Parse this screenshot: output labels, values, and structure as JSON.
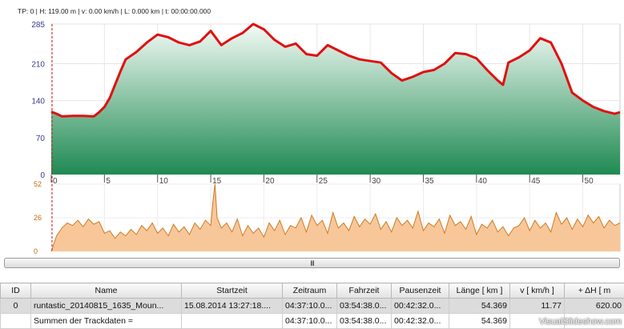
{
  "status_line": "TP: 0 | H: 119.00 m | v: 0.00 km/h | L: 0.000 km | t: 00:00:00.000",
  "colors": {
    "elevation_line": "#e01010",
    "elevation_fill_top": "#f4fbf6",
    "elevation_fill_bottom": "#1f8a52",
    "speed_line": "#cf7a22",
    "speed_fill": "#f7c79a",
    "cursor": "#d02020"
  },
  "chart_data": [
    {
      "type": "area",
      "title": "",
      "xlabel": "",
      "ylabel": "",
      "xlim": [
        0,
        53.5
      ],
      "ylim": [
        0,
        285
      ],
      "yticks": [
        0,
        70,
        140,
        210,
        285
      ],
      "xticks": [
        0,
        5,
        10,
        15,
        20,
        25,
        30,
        35,
        40,
        45,
        50
      ],
      "grid": true,
      "x": [
        0,
        0.5,
        1,
        2,
        3,
        4,
        4.5,
        5,
        5.5,
        6,
        6.5,
        7,
        8,
        9,
        10,
        11,
        12,
        13,
        14,
        15,
        16,
        17,
        18,
        19,
        20,
        21,
        22,
        23,
        24,
        25,
        26,
        27,
        28,
        29,
        30,
        31,
        32,
        33,
        34,
        35,
        36,
        37,
        38,
        39,
        40,
        41,
        42,
        42.5,
        43,
        44,
        45,
        46,
        47,
        48,
        49,
        50,
        51,
        52,
        53,
        53.5
      ],
      "values": [
        119,
        115,
        110,
        111,
        111,
        110,
        118,
        128,
        145,
        170,
        195,
        218,
        232,
        250,
        265,
        260,
        250,
        245,
        252,
        272,
        245,
        258,
        268,
        285,
        275,
        255,
        242,
        248,
        228,
        225,
        245,
        235,
        225,
        218,
        215,
        212,
        192,
        178,
        185,
        194,
        198,
        210,
        230,
        228,
        220,
        198,
        178,
        170,
        212,
        222,
        235,
        258,
        250,
        210,
        155,
        140,
        128,
        120,
        115,
        118
      ]
    },
    {
      "type": "area",
      "title": "",
      "ylim": [
        0,
        52
      ],
      "yticks": [
        0,
        26,
        52
      ],
      "xlim": [
        0,
        53.5
      ],
      "x": [
        0,
        0.5,
        1,
        1.5,
        2,
        2.5,
        3,
        3.5,
        4,
        4.5,
        5,
        5.5,
        6,
        6.5,
        7,
        7.5,
        8,
        8.5,
        9,
        9.5,
        10,
        10.5,
        11,
        11.5,
        12,
        12.5,
        13,
        13.5,
        14,
        14.5,
        15,
        15.2,
        15.4,
        15.6,
        16,
        16.5,
        17,
        17.5,
        18,
        18.5,
        19,
        19.5,
        20,
        20.5,
        21,
        21.5,
        22,
        22.5,
        23,
        23.5,
        24,
        24.5,
        25,
        25.5,
        26,
        26.5,
        27,
        27.5,
        28,
        28.5,
        29,
        29.5,
        30,
        30.5,
        31,
        31.5,
        32,
        32.5,
        33,
        33.5,
        34,
        34.5,
        35,
        35.5,
        36,
        36.5,
        37,
        37.5,
        38,
        38.5,
        39,
        39.5,
        40,
        40.5,
        41,
        41.5,
        42,
        42.5,
        43,
        43.5,
        44,
        44.5,
        45,
        45.5,
        46,
        46.5,
        47,
        47.5,
        48,
        48.5,
        49,
        49.5,
        50,
        50.5,
        51,
        51.5,
        52,
        52.5,
        53,
        53.5
      ],
      "values": [
        0,
        12,
        18,
        22,
        20,
        24,
        19,
        25,
        21,
        23,
        14,
        16,
        10,
        15,
        12,
        17,
        13,
        20,
        16,
        22,
        14,
        18,
        12,
        21,
        15,
        19,
        13,
        22,
        17,
        24,
        20,
        38,
        52,
        26,
        18,
        22,
        15,
        25,
        12,
        20,
        14,
        18,
        11,
        22,
        16,
        24,
        13,
        20,
        18,
        26,
        15,
        28,
        20,
        24,
        14,
        30,
        18,
        22,
        16,
        27,
        19,
        25,
        21,
        29,
        17,
        23,
        15,
        26,
        20,
        24,
        18,
        31,
        16,
        22,
        19,
        25,
        14,
        28,
        20,
        23,
        17,
        27,
        13,
        21,
        18,
        24,
        15,
        19,
        12,
        18,
        20,
        26,
        16,
        24,
        18,
        22,
        15,
        30,
        21,
        26,
        17,
        25,
        19,
        28,
        22,
        27,
        18,
        24,
        20,
        22
      ]
    }
  ],
  "scrollbar_grip": "III",
  "table": {
    "headers": [
      "ID",
      "Name",
      "Startzeit",
      "Zeitraum",
      "Fahrzeit",
      "Pausenzeit",
      "Länge  [ km ]",
      "v  [ km/h ]",
      "+ ΔH  [ m"
    ],
    "rows": [
      [
        "0",
        "runtastic_20140815_1635_Moun...",
        "15.08.2014 13:27:18....",
        "04:37:10.0...",
        "03:54:38.0...",
        "00:42:32.0...",
        "54.369",
        "11.77",
        "620.00"
      ],
      [
        "",
        "Summen der Trackdaten =",
        "",
        "04:37:10.0...",
        "03:54:38.0...",
        "00:42:32.0...",
        "54.369",
        "",
        ""
      ]
    ]
  },
  "watermark": "VisualSlideshow.com"
}
